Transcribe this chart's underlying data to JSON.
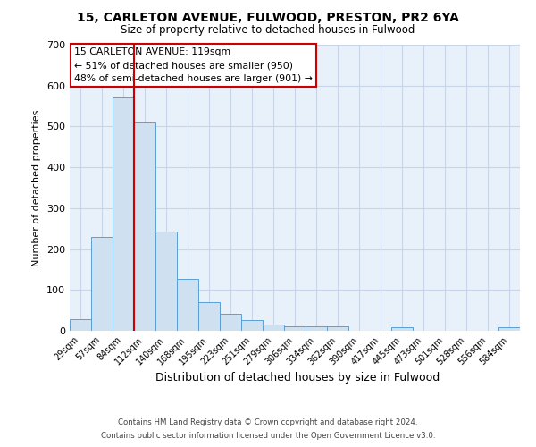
{
  "title_line1": "15, CARLETON AVENUE, FULWOOD, PRESTON, PR2 6YA",
  "title_line2": "Size of property relative to detached houses in Fulwood",
  "xlabel": "Distribution of detached houses by size in Fulwood",
  "ylabel": "Number of detached properties",
  "bin_labels": [
    "29sqm",
    "57sqm",
    "84sqm",
    "112sqm",
    "140sqm",
    "168sqm",
    "195sqm",
    "223sqm",
    "251sqm",
    "279sqm",
    "306sqm",
    "334sqm",
    "362sqm",
    "390sqm",
    "417sqm",
    "445sqm",
    "473sqm",
    "501sqm",
    "528sqm",
    "556sqm",
    "584sqm"
  ],
  "bar_values": [
    28,
    230,
    570,
    510,
    242,
    127,
    70,
    42,
    27,
    15,
    11,
    11,
    11,
    0,
    0,
    8,
    0,
    0,
    0,
    0,
    8
  ],
  "bar_color": "#cfe0f0",
  "bar_edge_color": "#5a9fd4",
  "vline_color": "#cc0000",
  "annotation_title": "15 CARLETON AVENUE: 119sqm",
  "annotation_line2": "← 51% of detached houses are smaller (950)",
  "annotation_line3": "48% of semi-detached houses are larger (901) →",
  "annotation_box_color": "#ffffff",
  "annotation_box_edge": "#cc0000",
  "footer_line1": "Contains HM Land Registry data © Crown copyright and database right 2024.",
  "footer_line2": "Contains public sector information licensed under the Open Government Licence v3.0.",
  "ylim": [
    0,
    700
  ],
  "grid_color": "#c8d4e8",
  "background_color": "#e8f0fa"
}
